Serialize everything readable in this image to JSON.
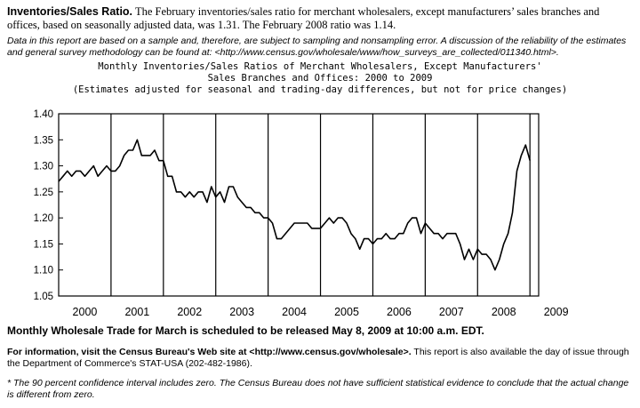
{
  "intro": {
    "heading": "Inventories/Sales Ratio.",
    "text": "The February inventories/sales ratio for merchant wholesalers, except manufacturers’ sales branches and offices, based on seasonally adjusted data, was 1.31.  The February 2008 ratio was 1.14."
  },
  "reliability_note": "Data in this report are based on a sample and, therefore, are subject to sampling and nonsampling error.  A discussion of the reliability of the estimates and general survey methodology can be found at: <http://www.census.gov/wholesale/www/how_surveys_are_collected/011340.html>.",
  "chart_data": {
    "type": "line",
    "title": "Monthly Inventories/Sales Ratios of Merchant Wholesalers, Except Manufacturers'",
    "title_line2": "Sales Branches and Offices: 2000 to 2009",
    "subtitle": "(Estimates adjusted for seasonal and trading-day differences, but not for price changes)",
    "xlabel": "",
    "ylabel": "",
    "ylim": [
      1.05,
      1.4
    ],
    "y_ticks": [
      "1.40",
      "1.35",
      "1.30",
      "1.25",
      "1.20",
      "1.15",
      "1.10",
      "1.05"
    ],
    "x_tick_labels": [
      "2000",
      "2001",
      "2002",
      "2003",
      "2004",
      "2005",
      "2006",
      "2007",
      "2008",
      "2009"
    ],
    "x_range": [
      "2000-01",
      "2009-03"
    ],
    "grid": false,
    "vertical_lines_at": [
      "2001-01",
      "2002-01",
      "2003-01",
      "2004-01",
      "2005-01",
      "2006-01",
      "2007-01",
      "2008-01",
      "2009-01"
    ],
    "series": [
      {
        "values": [
          1.27,
          1.28,
          1.29,
          1.28,
          1.29,
          1.29,
          1.28,
          1.29,
          1.3,
          1.28,
          1.29,
          1.3,
          1.29,
          1.29,
          1.3,
          1.32,
          1.33,
          1.33,
          1.35,
          1.32,
          1.32,
          1.32,
          1.33,
          1.31,
          1.31,
          1.28,
          1.28,
          1.25,
          1.25,
          1.24,
          1.25,
          1.24,
          1.25,
          1.25,
          1.23,
          1.26,
          1.24,
          1.25,
          1.23,
          1.26,
          1.26,
          1.24,
          1.23,
          1.22,
          1.22,
          1.21,
          1.21,
          1.2,
          1.2,
          1.19,
          1.16,
          1.16,
          1.17,
          1.18,
          1.19,
          1.19,
          1.19,
          1.19,
          1.18,
          1.18,
          1.18,
          1.19,
          1.2,
          1.19,
          1.2,
          1.2,
          1.19,
          1.17,
          1.16,
          1.14,
          1.16,
          1.16,
          1.15,
          1.16,
          1.16,
          1.17,
          1.16,
          1.16,
          1.17,
          1.17,
          1.19,
          1.2,
          1.2,
          1.17,
          1.19,
          1.18,
          1.17,
          1.17,
          1.16,
          1.17,
          1.17,
          1.17,
          1.15,
          1.12,
          1.14,
          1.12,
          1.14,
          1.13,
          1.13,
          1.12,
          1.1,
          1.12,
          1.15,
          1.17,
          1.21,
          1.29,
          1.32,
          1.34,
          1.31
        ]
      }
    ]
  },
  "release_notice": "Monthly Wholesale Trade for March is scheduled to be released May 8, 2009 at 10:00 a.m. EDT.",
  "info": {
    "bold": "For information, visit the Census Bureau's Web site at <http://www.census.gov/wholesale>.",
    "rest": "  This report is also available the day of issue through the Department of Commerce's STAT-USA (202-482-1986)."
  },
  "footnote": "* The 90 percent confidence interval includes zero.  The Census Bureau does not have sufficient statistical evidence to conclude that the actual change is different from zero."
}
